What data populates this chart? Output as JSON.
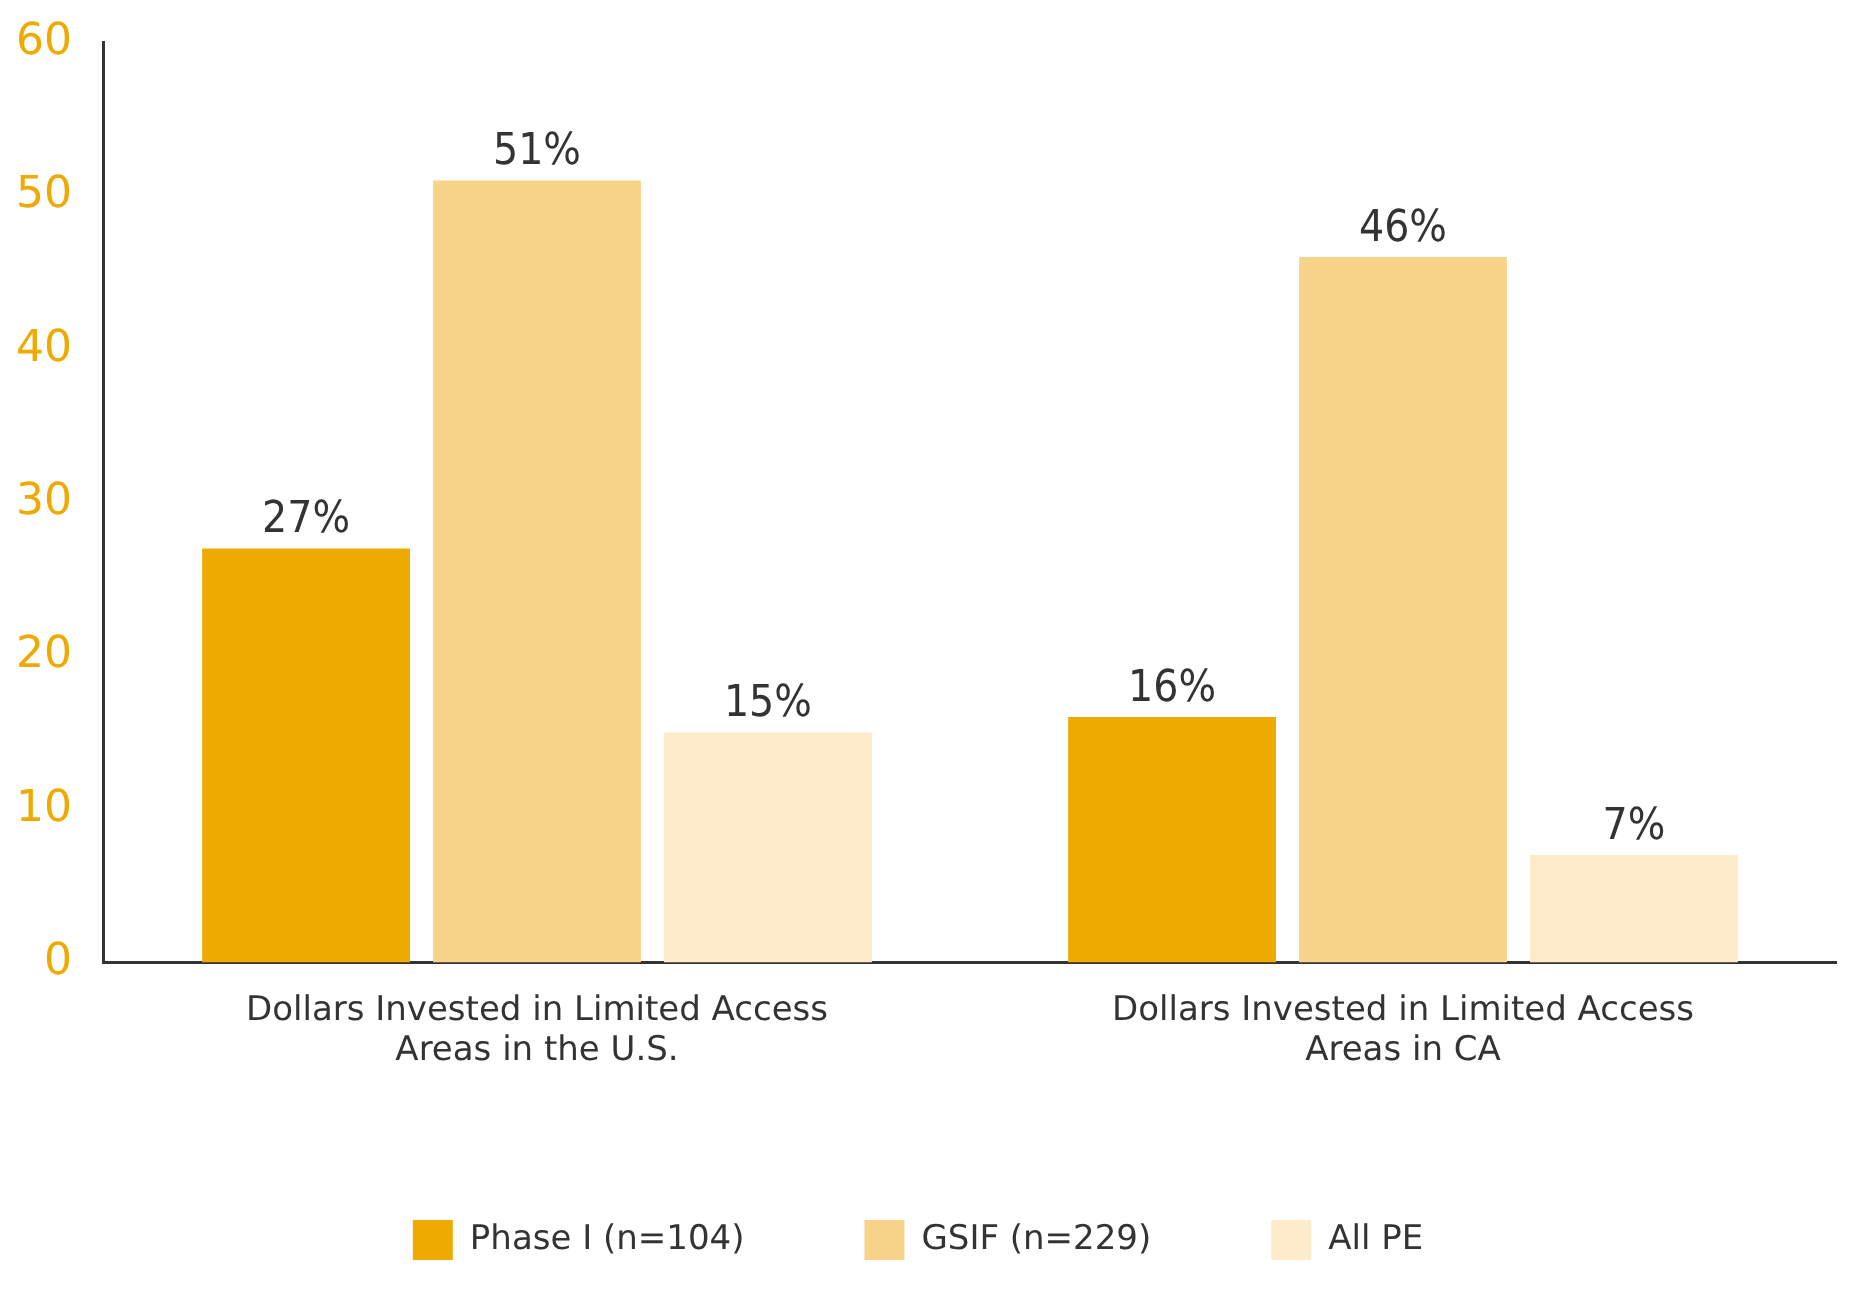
{
  "chart_data": {
    "type": "bar",
    "categories": [
      "Dollars Invested in Limited Access Areas in the U.S.",
      "Dollars Invested in Limited Access Areas in CA"
    ],
    "series": [
      {
        "name": "Phase I (n=104)",
        "color": "#eeaa00",
        "values": [
          27,
          16
        ],
        "value_labels": [
          "27%",
          "16%"
        ]
      },
      {
        "name": "GSIF (n=229)",
        "color": "#f8d48a",
        "values": [
          51,
          46
        ],
        "value_labels": [
          "51%",
          "46%"
        ]
      },
      {
        "name": "All PE",
        "color": "#fdebc9",
        "values": [
          15,
          7
        ],
        "value_labels": [
          "15%",
          "7%"
        ]
      }
    ],
    "ylim": [
      0,
      60
    ],
    "yticks": [
      0,
      10,
      20,
      30,
      40,
      50,
      60
    ],
    "grid": false,
    "legend": "bottom"
  }
}
